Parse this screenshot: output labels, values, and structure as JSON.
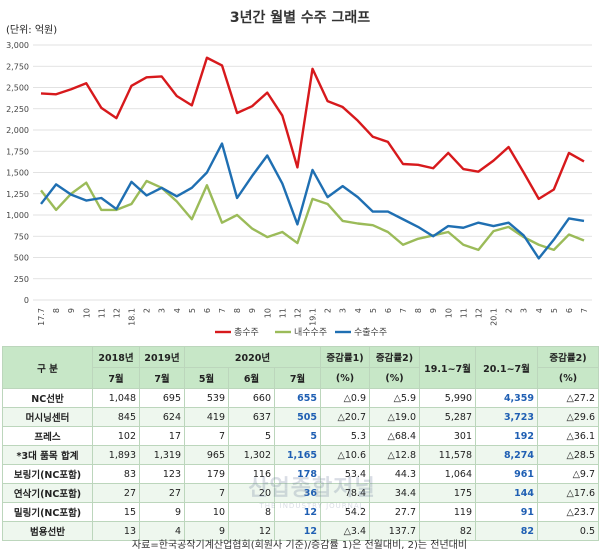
{
  "chart_data": {
    "type": "line",
    "title": "3년간 월별 수주 그래프",
    "unit_label": "(단위: 억원)",
    "ylim": [
      0,
      3000
    ],
    "yticks": [
      "0",
      "250",
      "500",
      "750",
      "1,000",
      "1,250",
      "1,500",
      "1,750",
      "2,000",
      "2,250",
      "2,500",
      "2,750",
      "3,000"
    ],
    "ytick_values": [
      0,
      250,
      500,
      750,
      1000,
      1250,
      1500,
      1750,
      2000,
      2250,
      2500,
      2750,
      3000
    ],
    "categories": [
      "17.7",
      "8",
      "9",
      "10",
      "11",
      "12",
      "18.1",
      "2",
      "3",
      "4",
      "5",
      "6",
      "7",
      "8",
      "9",
      "10",
      "11",
      "12",
      "19.1",
      "2",
      "3",
      "4",
      "5",
      "6",
      "7",
      "8",
      "9",
      "10",
      "11",
      "12",
      "20.1",
      "2",
      "3",
      "4",
      "5",
      "6",
      "7"
    ],
    "series": [
      {
        "name": "총수주",
        "color": "#d7191c",
        "values": [
          2430,
          2420,
          2480,
          2550,
          2260,
          2140,
          2520,
          2620,
          2630,
          2400,
          2290,
          2850,
          2760,
          2200,
          2280,
          2440,
          2170,
          1560,
          2720,
          2340,
          2270,
          2110,
          1920,
          1860,
          1600,
          1590,
          1550,
          1730,
          1540,
          1510,
          1640,
          1800,
          1500,
          1190,
          1300,
          1730,
          1630
        ]
      },
      {
        "name": "내수수주",
        "color": "#9bbb59",
        "values": [
          1290,
          1060,
          1250,
          1380,
          1060,
          1060,
          1130,
          1400,
          1320,
          1160,
          950,
          1350,
          910,
          1000,
          840,
          740,
          800,
          670,
          1190,
          1130,
          930,
          900,
          880,
          800,
          650,
          720,
          760,
          800,
          650,
          590,
          810,
          860,
          740,
          650,
          590,
          770,
          700
        ]
      },
      {
        "name": "수출수주",
        "color": "#1f6fb2",
        "values": [
          1130,
          1360,
          1240,
          1170,
          1200,
          1070,
          1390,
          1230,
          1320,
          1220,
          1320,
          1500,
          1840,
          1200,
          1460,
          1700,
          1370,
          890,
          1530,
          1210,
          1340,
          1210,
          1040,
          1040,
          950,
          860,
          750,
          870,
          850,
          910,
          870,
          910,
          760,
          490,
          710,
          960,
          930
        ]
      }
    ]
  },
  "table": {
    "headers": {
      "col0": "구 분",
      "y2018": "2018년",
      "y2019": "2019년",
      "y2020": "2020년",
      "chg1": "증감률1)",
      "chg2": "증감률2)",
      "ytd19": "19.1~7월",
      "ytd20": "20.1~7월",
      "chg3": "증감률2)",
      "m2018": "7월",
      "m2019": "7월",
      "m5": "5월",
      "m6": "6월",
      "m7": "7월",
      "pct1": "(%)",
      "pct2": "(%)",
      "pct3": "(%)"
    },
    "rows": [
      {
        "label": "NC선반",
        "cells": [
          "1,048",
          "695",
          "539",
          "660",
          "655",
          "△0.9",
          "△5.9",
          "5,990",
          "4,359",
          "△27.2"
        ]
      },
      {
        "label": "머시닝센터",
        "cells": [
          "845",
          "624",
          "419",
          "637",
          "505",
          "△20.7",
          "△19.0",
          "5,287",
          "3,723",
          "△29.6"
        ]
      },
      {
        "label": "프레스",
        "cells": [
          "102",
          "17",
          "7",
          "5",
          "5",
          "5.3",
          "△68.4",
          "301",
          "192",
          "△36.1"
        ]
      },
      {
        "label": "*3대 품목 합계",
        "cells": [
          "1,893",
          "1,319",
          "965",
          "1,302",
          "1,165",
          "△10.6",
          "△12.8",
          "11,578",
          "8,274",
          "△28.5"
        ]
      },
      {
        "label": "보링기(NC포함)",
        "cells": [
          "83",
          "123",
          "179",
          "116",
          "178",
          "53.4",
          "44.3",
          "1,064",
          "961",
          "△9.7"
        ]
      },
      {
        "label": "연삭기(NC포함)",
        "cells": [
          "27",
          "27",
          "7",
          "20",
          "36",
          "78.4",
          "34.4",
          "175",
          "144",
          "△17.6"
        ]
      },
      {
        "label": "밀링기(NC포함)",
        "cells": [
          "15",
          "9",
          "10",
          "8",
          "12",
          "54.2",
          "27.7",
          "119",
          "91",
          "△23.7"
        ]
      },
      {
        "label": "범용선반",
        "cells": [
          "13",
          "4",
          "9",
          "12",
          "12",
          "△3.4",
          "137.7",
          "82",
          "82",
          "0.5"
        ]
      }
    ]
  },
  "source_note": "자료=한국공작기계산업협회(회원사 기준)/증감률 1)은 전월대비, 2)는 전년대비",
  "watermark": {
    "line1": "산업종합저널",
    "line2": "THE INDUSTRY JOURNAL"
  }
}
